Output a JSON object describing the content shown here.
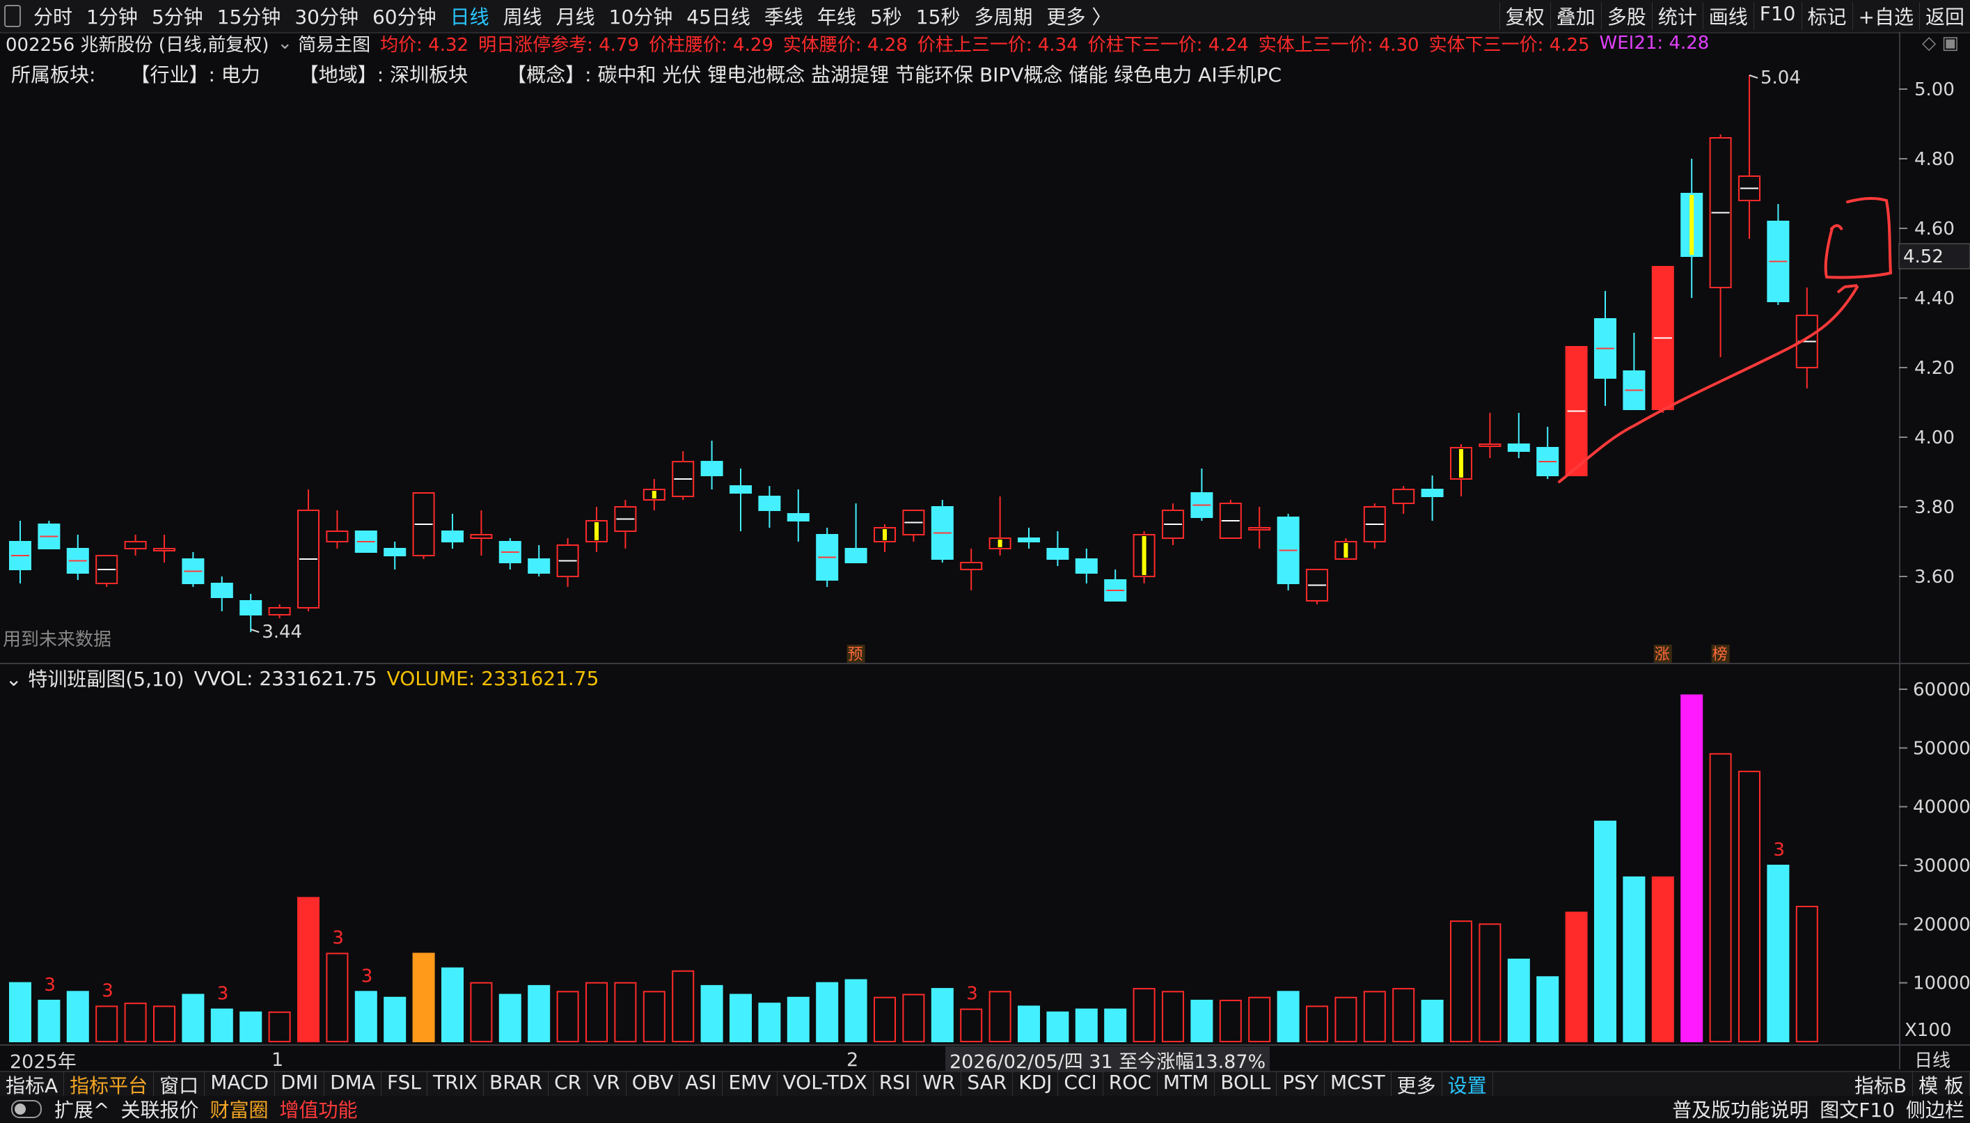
{
  "topbar": {
    "periods": [
      "分时",
      "1分钟",
      "5分钟",
      "15分钟",
      "30分钟",
      "60分钟",
      "日线",
      "周线",
      "月线",
      "10分钟",
      "45日线",
      "季线",
      "年线",
      "5秒",
      "15秒",
      "多周期",
      "更多 〉"
    ],
    "active_period": "日线",
    "right_items": [
      "复权",
      "叠加",
      "多股",
      "统计",
      "画线",
      "F10",
      "标记",
      "+自选",
      "返回"
    ]
  },
  "info": {
    "code": "002256 兆新股份 (日线,前复权)",
    "chart_name": "简易主图",
    "indicators": [
      "均价: 4.32",
      "明日涨停参考: 4.79",
      "价柱腰价: 4.29",
      "实体腰价: 4.28",
      "价柱上三一价: 4.34",
      "价柱下三一价: 4.24",
      "实体上三一价: 4.30",
      "实体下三一价: 4.25"
    ],
    "wei21": "WEI21: 4.28"
  },
  "sector": {
    "label": "所属板块:",
    "industry": "【行业】: 电力",
    "region": "【地域】: 深圳板块",
    "concept": "【概念】: 碳中和 光伏 锂电池概念 盐湖提锂 节能环保 BIPV概念 储能 绿色电力 AI手机PC"
  },
  "warning": "用到未来数据",
  "subchart": {
    "title": "特训班副图(5,10)",
    "vvol": "VVOL: 2331621.75",
    "volume": "VOLUME: 2331621.75"
  },
  "dates": {
    "year_label": "2025年",
    "month1": "1",
    "month2": "2",
    "cursor": "2026/02/05/四 31 至今涨幅13.87%"
  },
  "bottom_tabs": [
    "指标A",
    "指标平台",
    "窗口",
    "MACD",
    "DMI",
    "DMA",
    "FSL",
    "TRIX",
    "BRAR",
    "CR",
    "VR",
    "OBV",
    "ASI",
    "EMV",
    "VOL-TDX",
    "RSI",
    "WR",
    "SAR",
    "KDJ",
    "CCI",
    "ROC",
    "MTM",
    "BOLL",
    "PSY",
    "MCST",
    "更多",
    "设置"
  ],
  "bottom_right": [
    "指标B",
    "模 板"
  ],
  "statusbar": {
    "left": [
      "扩展^",
      "关联报价",
      "财富圈",
      "增值功能"
    ],
    "right": [
      "普及版功能说明",
      "图文F10",
      "侧边栏"
    ]
  },
  "colors": {
    "up": "#ff2a2a",
    "down": "#44f0ff",
    "highlight": "#ff1aff",
    "yellow": "#ffff00",
    "volume_orange": "#ff9a1a"
  },
  "chart_data": {
    "type": "candlestick",
    "price_axis": {
      "ticks": [
        3.6,
        3.8,
        4.0,
        4.2,
        4.4,
        4.6,
        4.8,
        5.0
      ],
      "current": "4.52",
      "high_label": "5.04",
      "low_label": "3.44"
    },
    "volume_axis": {
      "ticks": [
        "10000",
        "20000",
        "30000",
        "40000",
        "50000",
        "60000"
      ],
      "unit": "X100"
    },
    "interval_label": "日线",
    "markers": [
      "预",
      "涨",
      "榜"
    ],
    "candles": [
      {
        "o": 3.7,
        "h": 3.76,
        "l": 3.58,
        "c": 3.62,
        "v": 10000
      },
      {
        "o": 3.75,
        "h": 3.76,
        "l": 3.68,
        "c": 3.68,
        "v": 7000,
        "m": "3"
      },
      {
        "o": 3.68,
        "h": 3.72,
        "l": 3.59,
        "c": 3.61,
        "v": 8500
      },
      {
        "o": 3.58,
        "h": 3.66,
        "l": 3.57,
        "c": 3.66,
        "v": 6000,
        "m": "3"
      },
      {
        "o": 3.68,
        "h": 3.72,
        "l": 3.66,
        "c": 3.7,
        "v": 6500
      },
      {
        "o": 3.68,
        "h": 3.72,
        "l": 3.64,
        "c": 3.68,
        "v": 6000
      },
      {
        "o": 3.65,
        "h": 3.67,
        "l": 3.57,
        "c": 3.58,
        "v": 8000
      },
      {
        "o": 3.58,
        "h": 3.6,
        "l": 3.5,
        "c": 3.54,
        "v": 5500,
        "m": "3"
      },
      {
        "o": 3.53,
        "h": 3.55,
        "l": 3.44,
        "c": 3.49,
        "v": 5000
      },
      {
        "o": 3.49,
        "h": 3.52,
        "l": 3.48,
        "c": 3.51,
        "v": 5000
      },
      {
        "o": 3.51,
        "h": 3.85,
        "l": 3.5,
        "c": 3.79,
        "v": 24500
      },
      {
        "o": 3.7,
        "h": 3.79,
        "l": 3.68,
        "c": 3.73,
        "v": 15000,
        "m": "3"
      },
      {
        "o": 3.73,
        "h": 3.73,
        "l": 3.67,
        "c": 3.67,
        "v": 8500,
        "m": "3"
      },
      {
        "o": 3.68,
        "h": 3.7,
        "l": 3.62,
        "c": 3.66,
        "v": 7500
      },
      {
        "o": 3.66,
        "h": 3.84,
        "l": 3.65,
        "c": 3.84,
        "v": 15000,
        "hl": "orange"
      },
      {
        "o": 3.73,
        "h": 3.78,
        "l": 3.68,
        "c": 3.7,
        "v": 12500
      },
      {
        "o": 3.71,
        "h": 3.79,
        "l": 3.66,
        "c": 3.72,
        "v": 10000
      },
      {
        "o": 3.7,
        "h": 3.71,
        "l": 3.62,
        "c": 3.64,
        "v": 8000
      },
      {
        "o": 3.65,
        "h": 3.69,
        "l": 3.6,
        "c": 3.61,
        "v": 9500
      },
      {
        "o": 3.6,
        "h": 3.71,
        "l": 3.57,
        "c": 3.69,
        "v": 8500
      },
      {
        "o": 3.7,
        "h": 3.8,
        "l": 3.67,
        "c": 3.76,
        "v": 10000,
        "y": true
      },
      {
        "o": 3.73,
        "h": 3.82,
        "l": 3.68,
        "c": 3.8,
        "v": 10000
      },
      {
        "o": 3.82,
        "h": 3.88,
        "l": 3.79,
        "c": 3.85,
        "v": 8500,
        "y": true
      },
      {
        "o": 3.83,
        "h": 3.96,
        "l": 3.82,
        "c": 3.93,
        "v": 12000
      },
      {
        "o": 3.93,
        "h": 3.99,
        "l": 3.85,
        "c": 3.89,
        "v": 9500
      },
      {
        "o": 3.86,
        "h": 3.91,
        "l": 3.73,
        "c": 3.84,
        "v": 8000
      },
      {
        "o": 3.83,
        "h": 3.86,
        "l": 3.74,
        "c": 3.79,
        "v": 6500
      },
      {
        "o": 3.78,
        "h": 3.85,
        "l": 3.7,
        "c": 3.76,
        "v": 7500
      },
      {
        "o": 3.72,
        "h": 3.74,
        "l": 3.57,
        "c": 3.59,
        "v": 10000
      },
      {
        "o": 3.68,
        "h": 3.81,
        "l": 3.64,
        "c": 3.64,
        "v": 10500
      },
      {
        "o": 3.7,
        "h": 3.75,
        "l": 3.67,
        "c": 3.74,
        "v": 7500,
        "y": true
      },
      {
        "o": 3.72,
        "h": 3.79,
        "l": 3.7,
        "c": 3.79,
        "v": 8000
      },
      {
        "o": 3.8,
        "h": 3.82,
        "l": 3.64,
        "c": 3.65,
        "v": 9000
      },
      {
        "o": 3.62,
        "h": 3.68,
        "l": 3.56,
        "c": 3.64,
        "v": 5500,
        "m": "3"
      },
      {
        "o": 3.68,
        "h": 3.83,
        "l": 3.66,
        "c": 3.71,
        "v": 8500,
        "y": true
      },
      {
        "o": 3.71,
        "h": 3.74,
        "l": 3.68,
        "c": 3.7,
        "v": 6000
      },
      {
        "o": 3.68,
        "h": 3.73,
        "l": 3.63,
        "c": 3.65,
        "v": 5000
      },
      {
        "o": 3.65,
        "h": 3.68,
        "l": 3.58,
        "c": 3.61,
        "v": 5500
      },
      {
        "o": 3.59,
        "h": 3.62,
        "l": 3.53,
        "c": 3.53,
        "v": 5500
      },
      {
        "o": 3.6,
        "h": 3.73,
        "l": 3.58,
        "c": 3.72,
        "v": 9000,
        "y": true
      },
      {
        "o": 3.71,
        "h": 3.81,
        "l": 3.69,
        "c": 3.79,
        "v": 8500
      },
      {
        "o": 3.84,
        "h": 3.91,
        "l": 3.76,
        "c": 3.77,
        "v": 7000
      },
      {
        "o": 3.71,
        "h": 3.82,
        "l": 3.71,
        "c": 3.81,
        "v": 7000
      },
      {
        "o": 3.74,
        "h": 3.8,
        "l": 3.68,
        "c": 3.74,
        "v": 7500
      },
      {
        "o": 3.77,
        "h": 3.78,
        "l": 3.56,
        "c": 3.58,
        "v": 8500
      },
      {
        "o": 3.53,
        "h": 3.62,
        "l": 3.52,
        "c": 3.62,
        "v": 6000
      },
      {
        "o": 3.65,
        "h": 3.71,
        "l": 3.65,
        "c": 3.7,
        "v": 7500,
        "y": true
      },
      {
        "o": 3.7,
        "h": 3.81,
        "l": 3.68,
        "c": 3.8,
        "v": 8500
      },
      {
        "o": 3.81,
        "h": 3.86,
        "l": 3.78,
        "c": 3.85,
        "v": 9000
      },
      {
        "o": 3.85,
        "h": 3.89,
        "l": 3.76,
        "c": 3.83,
        "v": 7000
      },
      {
        "o": 3.88,
        "h": 3.98,
        "l": 3.83,
        "c": 3.97,
        "v": 20500,
        "y": true
      },
      {
        "o": 3.98,
        "h": 4.07,
        "l": 3.94,
        "c": 3.98,
        "v": 20000
      },
      {
        "o": 3.98,
        "h": 4.07,
        "l": 3.94,
        "c": 3.96,
        "v": 14000
      },
      {
        "o": 3.97,
        "h": 4.03,
        "l": 3.88,
        "c": 3.89,
        "v": 11000
      },
      {
        "o": 3.89,
        "h": 4.26,
        "l": 3.89,
        "c": 4.26,
        "v": 22000,
        "f": true
      },
      {
        "o": 4.34,
        "h": 4.42,
        "l": 4.09,
        "c": 4.17,
        "v": 37500
      },
      {
        "o": 4.19,
        "h": 4.3,
        "l": 4.08,
        "c": 4.08,
        "v": 28000
      },
      {
        "o": 4.08,
        "h": 4.49,
        "l": 4.07,
        "c": 4.49,
        "v": 28000,
        "f": true
      },
      {
        "o": 4.7,
        "h": 4.8,
        "l": 4.4,
        "c": 4.52,
        "v": 59000,
        "mag": true,
        "y": true
      },
      {
        "o": 4.43,
        "h": 4.87,
        "l": 4.23,
        "c": 4.86,
        "v": 49000
      },
      {
        "o": 4.68,
        "h": 5.04,
        "l": 4.57,
        "c": 4.75,
        "v": 46000
      },
      {
        "o": 4.62,
        "h": 4.67,
        "l": 4.38,
        "c": 4.39,
        "v": 30000,
        "m": "3"
      },
      {
        "o": 4.2,
        "h": 4.43,
        "l": 4.14,
        "c": 4.35,
        "v": 23000
      }
    ]
  }
}
